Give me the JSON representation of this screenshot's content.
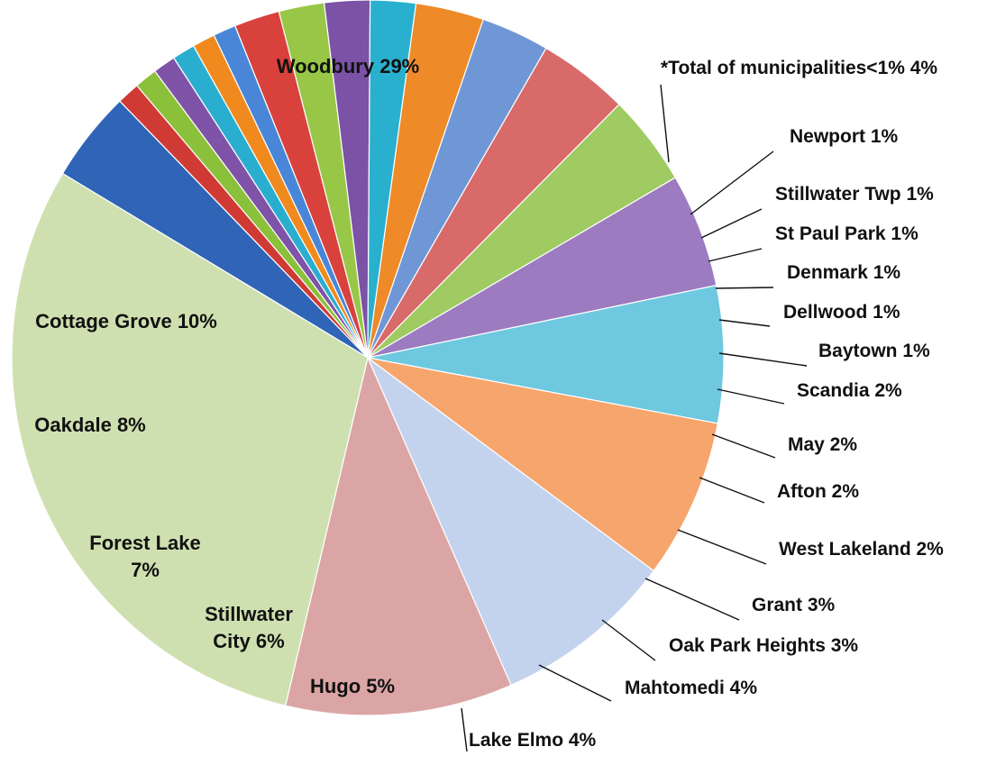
{
  "chart_data": {
    "type": "pie",
    "title": "",
    "start_angle_deg": 149,
    "direction": "clockwise",
    "slices": [
      {
        "name": "*Total of municipalities<1%",
        "value": 4,
        "label": "*Total of municipalities<1% 4%",
        "color": "#2f64b6",
        "label_position": "outside"
      },
      {
        "name": "Newport",
        "value": 1,
        "label": "Newport 1%",
        "color": "#d03a35",
        "label_position": "outside"
      },
      {
        "name": "Stillwater Twp",
        "value": 1,
        "label": "Stillwater Twp 1%",
        "color": "#8bc03a",
        "label_position": "outside"
      },
      {
        "name": "St Paul Park",
        "value": 1,
        "label": "St Paul Park 1%",
        "color": "#7e53a8",
        "label_position": "outside"
      },
      {
        "name": "Denmark",
        "value": 1,
        "label": "Denmark 1%",
        "color": "#2aaed0",
        "label_position": "outside"
      },
      {
        "name": "Dellwood",
        "value": 1,
        "label": "Dellwood 1%",
        "color": "#f08a1e",
        "label_position": "outside"
      },
      {
        "name": "Baytown",
        "value": 1,
        "label": "Baytown 1%",
        "color": "#4a86d8",
        "label_position": "outside"
      },
      {
        "name": "Scandia",
        "value": 2,
        "label": "Scandia 2%",
        "color": "#d9413d",
        "label_position": "outside"
      },
      {
        "name": "May",
        "value": 2,
        "label": "May 2%",
        "color": "#98c747",
        "label_position": "outside"
      },
      {
        "name": "Afton",
        "value": 2,
        "label": "Afton 2%",
        "color": "#7b52a6",
        "label_position": "outside"
      },
      {
        "name": "West Lakeland",
        "value": 2,
        "label": "West Lakeland 2%",
        "color": "#2ab0cf",
        "label_position": "outside"
      },
      {
        "name": "Grant",
        "value": 3,
        "label": "Grant 3%",
        "color": "#ee8a28",
        "label_position": "outside"
      },
      {
        "name": "Oak Park Heights",
        "value": 3,
        "label": "Oak Park Heights 3%",
        "color": "#6f97d6",
        "label_position": "outside"
      },
      {
        "name": "Mahtomedi",
        "value": 4,
        "label": "Mahtomedi 4%",
        "color": "#d86a6a",
        "label_position": "outside"
      },
      {
        "name": "Lake Elmo",
        "value": 4,
        "label": "Lake Elmo 4%",
        "color": "#9fcb62",
        "label_position": "outside"
      },
      {
        "name": "Hugo",
        "value": 5,
        "label": "Hugo 5%",
        "color": "#9c7bc0",
        "label_position": "inside"
      },
      {
        "name": "Stillwater City",
        "value": 6,
        "label": "Stillwater City 6%",
        "label_lines": [
          "Stillwater",
          "City 6%"
        ],
        "color": "#6ec8df",
        "label_position": "inside"
      },
      {
        "name": "Forest Lake",
        "value": 7,
        "label": "Forest Lake 7%",
        "label_lines": [
          "Forest Lake",
          "7%"
        ],
        "color": "#f6a56c",
        "label_position": "inside"
      },
      {
        "name": "Oakdale",
        "value": 8,
        "label": "Oakdale 8%",
        "color": "#c3d3ee",
        "label_position": "inside"
      },
      {
        "name": "Cottage Grove",
        "value": 10,
        "label": "Cottage Grove 10%",
        "color": "#dca5a5",
        "label_position": "inside"
      },
      {
        "name": "Woodbury",
        "value": 29,
        "label": "Woodbury 29%",
        "color": "#cfe0b0",
        "label_position": "inside"
      }
    ]
  }
}
